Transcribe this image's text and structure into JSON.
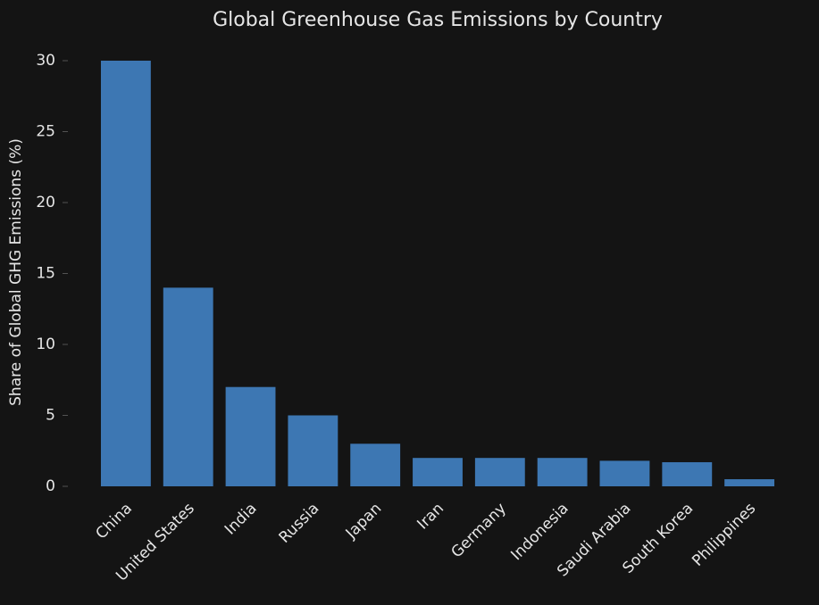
{
  "chart_data": {
    "type": "bar",
    "title": "Global Greenhouse Gas Emissions by Country",
    "y_label": "Share of Global GHG Emissions (%)",
    "categories": [
      "China",
      "United States",
      "India",
      "Russia",
      "Japan",
      "Iran",
      "Germany",
      "Indonesia",
      "Saudi Arabia",
      "South Korea",
      "Philippines"
    ],
    "values": [
      30,
      14,
      7,
      5,
      3,
      2,
      2,
      2,
      1.8,
      1.7,
      0.5
    ],
    "color": "#3d77b3",
    "ylim": [
      0,
      30
    ],
    "yticks": [
      0,
      5,
      10,
      15,
      20,
      25,
      30
    ],
    "grid": false
  }
}
